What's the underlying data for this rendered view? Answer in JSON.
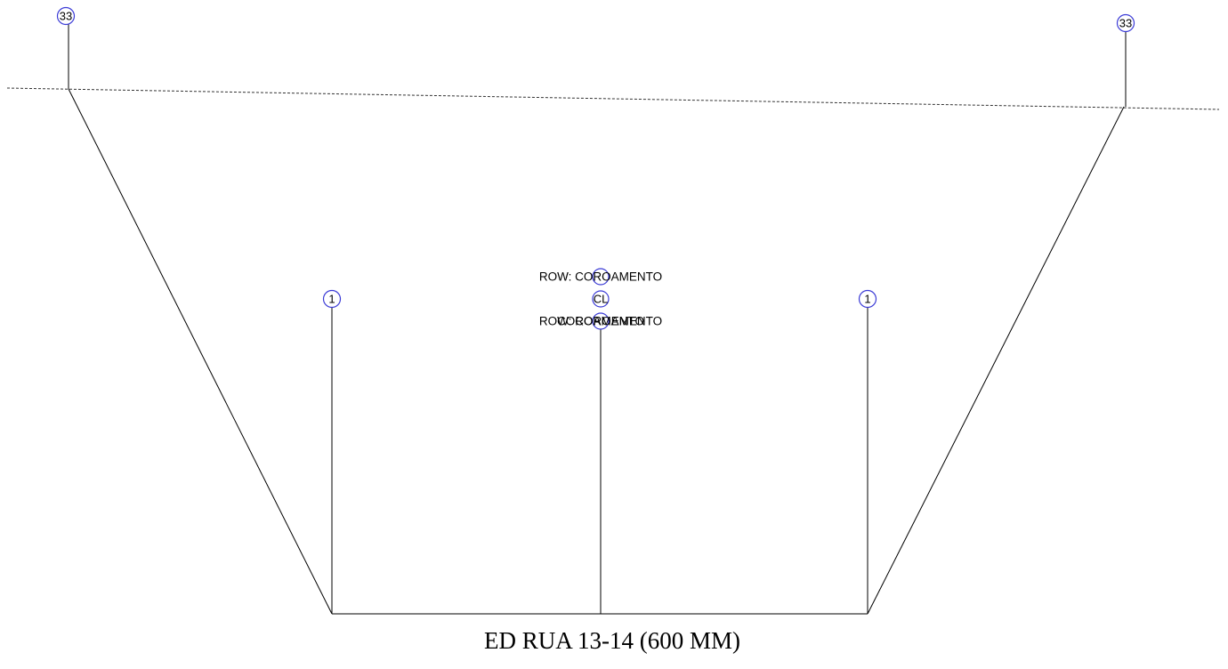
{
  "colors": {
    "line": "#000000",
    "ground_line": "#333333",
    "marker_outline": "#3b3bd6"
  },
  "markers": {
    "top_left": "33",
    "top_right": "33",
    "inner_left": "1",
    "inner_right": "1",
    "center": "CL"
  },
  "labels": {
    "row_top": "ROW: COROAMENTO",
    "center_overlap_a": "ROW: COROAMENTO",
    "center_overlap_b": "COROAMENTO"
  },
  "caption": "ED RUA 13-14 (600 MM)"
}
